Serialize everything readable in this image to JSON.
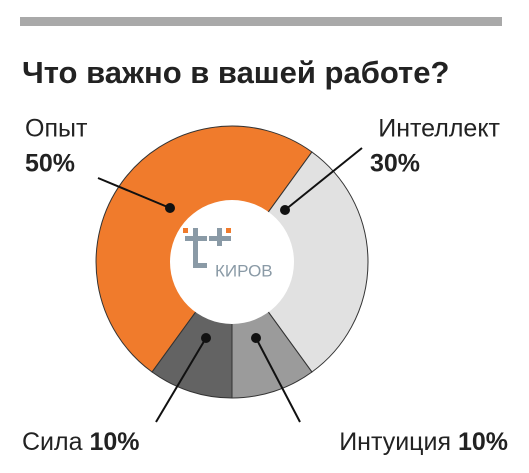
{
  "chart_data": {
    "type": "donut",
    "title": "Что важно в вашей работе?",
    "categories": [
      "Опыт",
      "Интеллект",
      "Интуиция",
      "Сила"
    ],
    "values": [
      50,
      30,
      10,
      10
    ],
    "value_labels": [
      "50%",
      "30%",
      "10%",
      "10%"
    ],
    "colors": [
      "#f07b2c",
      "#e1e1e1",
      "#9b9b9b",
      "#636363"
    ],
    "logo_text": "КИРОВ"
  }
}
